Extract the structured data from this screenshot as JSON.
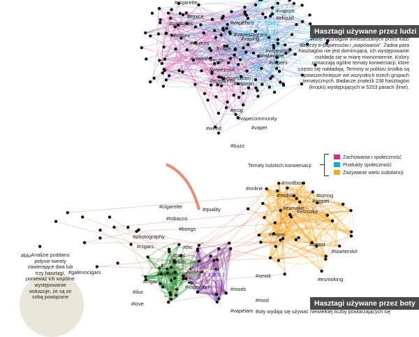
{
  "colors": {
    "social": "#d9288f",
    "products": "#1aa6d9",
    "substances": "#f5a623",
    "bots_green": "#2ea043",
    "bots_purple": "#7a3fa0",
    "bots_red": "#e05a3a",
    "node": "#111111",
    "header_bg": "#4a4a4a"
  },
  "top_network": {
    "header": "Hasztagi używane przez ludzi",
    "description": "Wiele hasztagów umieszczanych przez ludzi dotyczy e-papierosów i „wapowania”. Żadna para hasztagów nie jest dominująca, ich występowanie rozkłada się w miarę równomiernie. Kolory oznaczają ogólne tematy konwersacji, które często się nakładają. Terminy w pobliżu środka są powszechniejsze we wszystkich trzech grupach tematycznych. Badacze znaleźli 238 hasztagów (kropki) występujących w 5203 parach (linie).",
    "labels": [
      "#cigarette",
      "#ejuice",
      "#vapors",
      "#vapestagram",
      "#vape",
      "#vapelife",
      "#vapeporn",
      "#vapenation",
      "#vapeon",
      "#vapeshop",
      "#vaping",
      "#instavape",
      "#vapers",
      "#ecig",
      "#vapecommunity",
      "#vaper",
      "#weed",
      "#buzz",
      "#eliquid",
      "#cannabis",
      "#vapes",
      "#ecigs",
      "#vapefam",
      "#ejuices",
      "#ecigarette"
    ]
  },
  "legend": {
    "title": "Tematy ludzkich konwersacji",
    "items": [
      {
        "label": "Zachowania i społeczność",
        "color": "#d9288f"
      },
      {
        "label": "Produkty społeczność",
        "color": "#1aa6d9"
      },
      {
        "label": "Zażywanie wielu substancji",
        "color": "#f5a623"
      }
    ]
  },
  "bottom_network": {
    "header": "Hasztagi używane przez boty",
    "description": "Boty wydają się używać niewielkiej liczby powtarzających się",
    "labels": [
      "#cigarette",
      "#quality",
      "#tobacco",
      "#bongs",
      "#photography",
      "#cigars",
      "#blu",
      "#galenocigars",
      "#thc",
      "#cool",
      "#health",
      "#marihuana",
      "#cbd",
      "#smoking",
      "#ecig",
      "#smoke",
      "#vapes",
      "#vaping",
      "#vaporizer",
      "#cigar",
      "#iluc",
      "#love",
      "#quitsmoking",
      "#vape",
      "#mods",
      "#kanabis",
      "#online",
      "#modbox",
      "#ismog",
      "#mobile",
      "#esmoke",
      "#cigpet",
      "#esmoke",
      "#vaper",
      "#beast",
      "#starterskit",
      "#esmoking",
      "#smok",
      "#mod",
      "#vapelam"
    ]
  },
  "bubble_note": "Analizie poddano jedynie tweety zawierające dwa lub trzy hasztagi, ponieważ ich wspólne występowanie wskazuje, że są ze sobą powiązane"
}
